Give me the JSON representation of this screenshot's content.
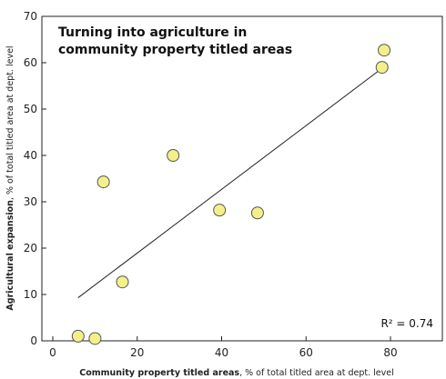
{
  "chart_data": {
    "type": "scatter",
    "title_lines": [
      "Turning into agriculture in",
      "community property titled areas"
    ],
    "xlabel_bold": "Community  property titled areas",
    "xlabel_rest": ", % of total titled area at dept. level",
    "ylabel_bold": "Agricultural expansion",
    "ylabel_rest": ", % of total titled area at dept. level",
    "xlim": [
      0,
      90
    ],
    "ylim": [
      0,
      70
    ],
    "x_ticks": [
      0,
      20,
      40,
      60,
      80
    ],
    "y_ticks": [
      0,
      10,
      20,
      30,
      40,
      50,
      60,
      70
    ],
    "grid": false,
    "points": [
      {
        "x": 6,
        "y": 1
      },
      {
        "x": 10,
        "y": 0.5
      },
      {
        "x": 12,
        "y": 34.3
      },
      {
        "x": 16.5,
        "y": 12.7
      },
      {
        "x": 28.5,
        "y": 40
      },
      {
        "x": 39.5,
        "y": 28.2
      },
      {
        "x": 48.5,
        "y": 27.6
      },
      {
        "x": 78,
        "y": 59
      },
      {
        "x": 78.5,
        "y": 62.7
      }
    ],
    "trendline": {
      "x": [
        6,
        78
      ],
      "y": [
        9.3,
        58.8
      ]
    },
    "annotation": "R² = 0.74",
    "colors": {
      "marker_fill": "#f3f08a",
      "marker_stroke": "#555555",
      "line": "#222222",
      "frame": "#222222"
    }
  }
}
